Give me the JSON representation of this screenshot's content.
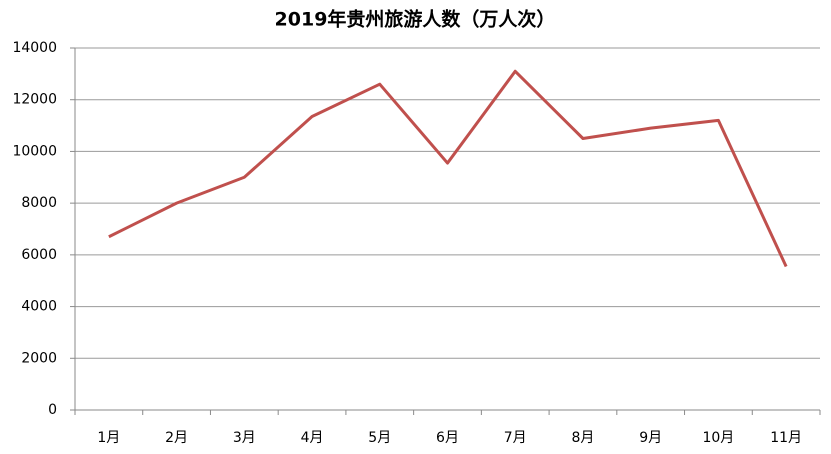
{
  "chart_data": {
    "type": "line",
    "title": "2019年贵州旅游人数（万人次）",
    "categories": [
      "1月",
      "2月",
      "3月",
      "4月",
      "5月",
      "6月",
      "7月",
      "8月",
      "9月",
      "10月",
      "11月"
    ],
    "series": [
      {
        "name": "旅游人数",
        "color": "#c0504d",
        "values": [
          6700,
          8000,
          9000,
          11350,
          12600,
          9550,
          13100,
          10500,
          10900,
          11200,
          5550
        ]
      }
    ],
    "ylim": [
      0,
      14000
    ],
    "yticks": [
      0,
      2000,
      4000,
      6000,
      8000,
      10000,
      12000,
      14000
    ],
    "grid": true
  }
}
